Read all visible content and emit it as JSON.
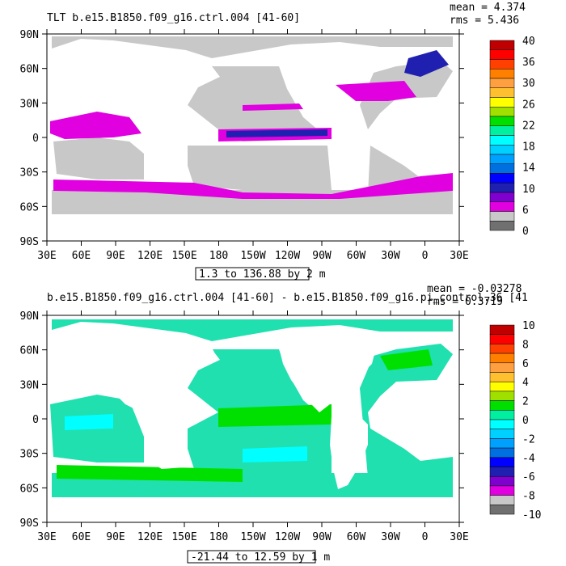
{
  "panels": [
    {
      "title": "TLT b.e15.B1850.f09_g16.ctrl.004 [41-60]",
      "mean_text": "mean = 4.374",
      "rms_text": "rms = 5.436",
      "range_text": "1.3 to 136.88 by 2 m"
    },
    {
      "title": "b.e15.B1850.f09_g16.ctrl.004 [41-60] - b.e15.B1850.f09_g16.pi_control.36 [41",
      "mean_text": "mean = -0.03278",
      "rms_text": "rms = 0.3719",
      "range_text": "-21.44 to 12.59 by 1 m"
    }
  ],
  "chart_data": [
    {
      "type": "heatmap",
      "title": "TLT b.e15.B1850.f09_g16.ctrl.004 [41-60]",
      "xlabel": "",
      "ylabel": "",
      "x_tick_labels": [
        "30E",
        "60E",
        "90E",
        "120E",
        "150E",
        "180",
        "150W",
        "120W",
        "90W",
        "60W",
        "30W",
        "0",
        "30E"
      ],
      "y_tick_labels": [
        "90N",
        "60N",
        "30N",
        "0",
        "30S",
        "60S",
        "90S"
      ],
      "xlim": [
        30,
        390
      ],
      "ylim": [
        -90,
        90
      ],
      "colorbar_labels": [
        "40",
        "36",
        "30",
        "26",
        "22",
        "18",
        "14",
        "10",
        "6",
        "0"
      ],
      "colorbar_colors": [
        "#c00000",
        "#ff0000",
        "#ff4000",
        "#ff8000",
        "#ffa040",
        "#ffc030",
        "#ffff00",
        "#a0e000",
        "#00e000",
        "#00f0a0",
        "#00ffff",
        "#00d0ff",
        "#00a0ff",
        "#0070e0",
        "#0000ff",
        "#2020b0",
        "#8000d0",
        "#e000e0",
        "#c8c8c8",
        "#707070"
      ],
      "mean": 4.374,
      "rms": 5.436,
      "range_note": "1.3 to 136.88 by 2 m"
    },
    {
      "type": "heatmap",
      "title": "b.e15.B1850.f09_g16.ctrl.004 [41-60] - b.e15.B1850.f09_g16.pi_control.36 [41",
      "xlabel": "",
      "ylabel": "",
      "x_tick_labels": [
        "30E",
        "60E",
        "90E",
        "120E",
        "150E",
        "180",
        "150W",
        "120W",
        "90W",
        "60W",
        "30W",
        "0",
        "30E"
      ],
      "y_tick_labels": [
        "90N",
        "60N",
        "30N",
        "0",
        "30S",
        "60S",
        "90S"
      ],
      "xlim": [
        30,
        390
      ],
      "ylim": [
        -90,
        90
      ],
      "colorbar_labels": [
        "10",
        "8",
        "6",
        "4",
        "2",
        "0",
        "-2",
        "-4",
        "-6",
        "-8",
        "-10"
      ],
      "colorbar_colors": [
        "#c00000",
        "#ff0000",
        "#ff4000",
        "#ff8000",
        "#ffa040",
        "#ffc030",
        "#ffff00",
        "#a0e000",
        "#00e000",
        "#00f0a0",
        "#00ffff",
        "#00d0ff",
        "#00a0ff",
        "#0070e0",
        "#0000ff",
        "#2020b0",
        "#8000d0",
        "#e000e0",
        "#c8c8c8",
        "#707070"
      ],
      "mean": -0.03278,
      "rms": 0.3719,
      "range_note": "-21.44 to 12.59 by 1 m"
    }
  ]
}
